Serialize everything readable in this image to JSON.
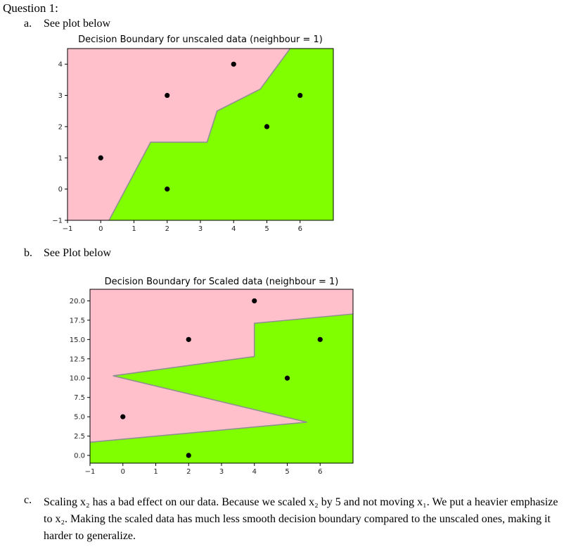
{
  "heading": "Question 1:",
  "item_a": {
    "marker": "a.",
    "text": "See plot below"
  },
  "item_b": {
    "marker": "b.",
    "text": "See Plot below"
  },
  "item_c": {
    "marker": "c.",
    "text": "Scaling x₂ has a bad effect on our data. Because we scaled x₂ by 5 and not moving x₁. We put a heavier emphasize to x₂. Making the scaled data has much less smooth decision boundary compared to the unscaled ones, making it harder to generalize."
  },
  "colors": {
    "class_a": "#ffc0cb",
    "class_b": "#7fff00",
    "boundary": "#909090",
    "point": "#000000"
  },
  "chart_data": [
    {
      "type": "scatter",
      "title": "Decision Boundary for unscaled data (neighbour = 1)",
      "xlim": [
        -1,
        7
      ],
      "ylim": [
        -1,
        4.5
      ],
      "xticks": [
        -1,
        0,
        1,
        2,
        3,
        4,
        5,
        6
      ],
      "yticks": [
        -1,
        0,
        1,
        2,
        3,
        4
      ],
      "x": [
        0,
        2,
        2,
        4,
        5,
        6
      ],
      "y": [
        1,
        3,
        0,
        4,
        2,
        3
      ],
      "boundary_x": [
        0.25,
        1.5,
        3.2,
        3.5,
        4.8,
        5.7
      ],
      "boundary_y": [
        -1,
        1.5,
        1.5,
        2.5,
        3.2,
        4.5
      ],
      "region_left": "pink",
      "region_right": "green",
      "grid": false
    },
    {
      "type": "scatter",
      "title": "Decision Boundary for Scaled data (neighbour = 1)",
      "xlim": [
        -1,
        7
      ],
      "ylim": [
        -1,
        21.5
      ],
      "xticks": [
        -1,
        0,
        1,
        2,
        3,
        4,
        5,
        6
      ],
      "yticks": [
        "0.0",
        "2.5",
        "5.0",
        "7.5",
        "10.0",
        "12.5",
        "15.0",
        "17.5",
        "20.0"
      ],
      "x": [
        0,
        2,
        2,
        4,
        5,
        6
      ],
      "y": [
        5,
        15,
        0,
        20,
        10,
        15
      ],
      "boundary_x": [
        -1,
        5.6,
        -0.3,
        4,
        4,
        7
      ],
      "boundary_y": [
        1.7,
        4.3,
        10.3,
        12.8,
        17.1,
        18.3
      ],
      "region_above": "pink",
      "region_below": "green",
      "grid": false
    }
  ]
}
